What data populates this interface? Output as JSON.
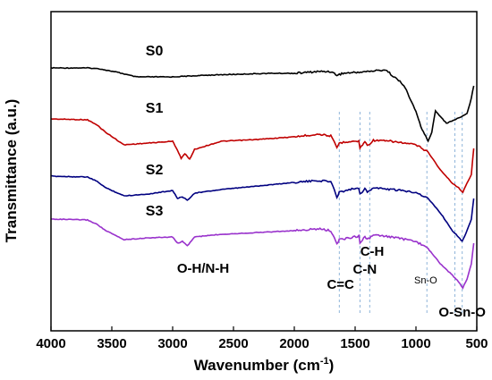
{
  "chart_data": {
    "type": "line",
    "xlabel_main": "Wavenumber (cm",
    "xlabel_sup": "-1",
    "xlabel_end": ")",
    "ylabel": "Transmittance (a.u.)",
    "xlim": [
      4000,
      500
    ],
    "x_reversed": true,
    "y_ticks_shown": false,
    "grid": false,
    "x_ticks": [
      4000,
      3500,
      3000,
      2500,
      2000,
      1500,
      1000,
      500
    ],
    "series": [
      {
        "name": "S0",
        "color": "#000000",
        "points": [
          [
            4000,
            76
          ],
          [
            3700,
            76
          ],
          [
            3600,
            77
          ],
          [
            3450,
            81
          ],
          [
            3300,
            86
          ],
          [
            3000,
            86
          ],
          [
            2700,
            84
          ],
          [
            2200,
            82
          ],
          [
            2000,
            82
          ],
          [
            1800,
            80
          ],
          [
            1700,
            80
          ],
          [
            1650,
            84
          ],
          [
            1600,
            82
          ],
          [
            1400,
            80
          ],
          [
            1250,
            78
          ],
          [
            1100,
            95
          ],
          [
            1000,
            125
          ],
          [
            950,
            145
          ],
          [
            900,
            158
          ],
          [
            870,
            148
          ],
          [
            840,
            124
          ],
          [
            800,
            130
          ],
          [
            750,
            138
          ],
          [
            650,
            132
          ],
          [
            580,
            127
          ],
          [
            545,
            110
          ],
          [
            525,
            96
          ]
        ]
      },
      {
        "name": "S1",
        "color": "#c00000",
        "points": [
          [
            4000,
            133
          ],
          [
            3700,
            134
          ],
          [
            3620,
            140
          ],
          [
            3550,
            148
          ],
          [
            3400,
            162
          ],
          [
            3200,
            160
          ],
          [
            3000,
            158
          ],
          [
            2960,
            168
          ],
          [
            2930,
            177
          ],
          [
            2900,
            172
          ],
          [
            2860,
            178
          ],
          [
            2820,
            167
          ],
          [
            2600,
            158
          ],
          [
            2300,
            156
          ],
          [
            2000,
            153
          ],
          [
            1800,
            150
          ],
          [
            1700,
            152
          ],
          [
            1650,
            165
          ],
          [
            1630,
            160
          ],
          [
            1550,
            158
          ],
          [
            1470,
            158
          ],
          [
            1460,
            166
          ],
          [
            1420,
            158
          ],
          [
            1400,
            163
          ],
          [
            1350,
            157
          ],
          [
            1200,
            158
          ],
          [
            1000,
            162
          ],
          [
            900,
            170
          ],
          [
            800,
            190
          ],
          [
            700,
            205
          ],
          [
            650,
            210
          ],
          [
            615,
            215
          ],
          [
            580,
            205
          ],
          [
            545,
            195
          ],
          [
            525,
            166
          ]
        ]
      },
      {
        "name": "S2",
        "color": "#000080",
        "points": [
          [
            4000,
            197
          ],
          [
            3700,
            198
          ],
          [
            3620,
            203
          ],
          [
            3550,
            210
          ],
          [
            3400,
            219
          ],
          [
            3200,
            217
          ],
          [
            3000,
            213
          ],
          [
            2960,
            222
          ],
          [
            2920,
            220
          ],
          [
            2880,
            224
          ],
          [
            2820,
            216
          ],
          [
            2600,
            212
          ],
          [
            2300,
            208
          ],
          [
            2000,
            204
          ],
          [
            1800,
            202
          ],
          [
            1700,
            203
          ],
          [
            1650,
            220
          ],
          [
            1630,
            215
          ],
          [
            1550,
            212
          ],
          [
            1470,
            210
          ],
          [
            1460,
            217
          ],
          [
            1420,
            211
          ],
          [
            1400,
            215
          ],
          [
            1350,
            210
          ],
          [
            1200,
            212
          ],
          [
            1000,
            215
          ],
          [
            900,
            222
          ],
          [
            800,
            238
          ],
          [
            700,
            258
          ],
          [
            650,
            265
          ],
          [
            620,
            270
          ],
          [
            580,
            258
          ],
          [
            545,
            245
          ],
          [
            525,
            222
          ]
        ]
      },
      {
        "name": "S3",
        "color": "#9932cc",
        "points": [
          [
            4000,
            245
          ],
          [
            3700,
            246
          ],
          [
            3620,
            251
          ],
          [
            3550,
            258
          ],
          [
            3400,
            268
          ],
          [
            3200,
            266
          ],
          [
            3000,
            265
          ],
          [
            2960,
            272
          ],
          [
            2920,
            270
          ],
          [
            2880,
            275
          ],
          [
            2820,
            265
          ],
          [
            2600,
            262
          ],
          [
            2300,
            260
          ],
          [
            2000,
            258
          ],
          [
            1800,
            256
          ],
          [
            1700,
            258
          ],
          [
            1650,
            273
          ],
          [
            1630,
            268
          ],
          [
            1550,
            266
          ],
          [
            1470,
            264
          ],
          [
            1460,
            271
          ],
          [
            1420,
            265
          ],
          [
            1400,
            268
          ],
          [
            1350,
            263
          ],
          [
            1200,
            265
          ],
          [
            1000,
            270
          ],
          [
            900,
            278
          ],
          [
            800,
            295
          ],
          [
            700,
            308
          ],
          [
            650,
            315
          ],
          [
            615,
            322
          ],
          [
            580,
            312
          ],
          [
            545,
            295
          ],
          [
            525,
            272
          ]
        ]
      }
    ],
    "series_labels": [
      {
        "text": "S0",
        "wavenumber": 3150
      },
      {
        "text": "S1",
        "wavenumber": 3150
      },
      {
        "text": "S2",
        "wavenumber": 3150
      },
      {
        "text": "S3",
        "wavenumber": 3150
      }
    ],
    "annotations": [
      {
        "text": "O-H/N-H",
        "wavenumber": 2750
      },
      {
        "text": "C=C",
        "wavenumber": 1620
      },
      {
        "text": "C-N",
        "wavenumber": 1420
      },
      {
        "text": "C-H",
        "wavenumber": 1360
      },
      {
        "text": "Sn-O",
        "wavenumber": 920
      },
      {
        "text": "O-Sn-O",
        "wavenumber": 620
      }
    ],
    "reference_lines": [
      1630,
      1460,
      1380,
      910,
      680,
      620
    ],
    "reference_line_color": "#8fb4d9"
  }
}
